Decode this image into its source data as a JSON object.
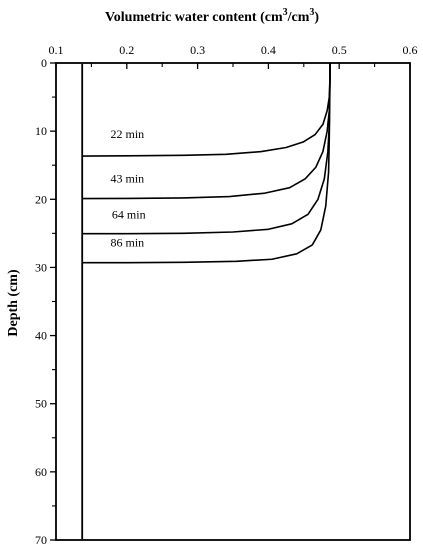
{
  "chart_data": {
    "type": "line",
    "title": "",
    "xlabel": "Volumetric water content (cm3/cm3)",
    "xlabel_parts": {
      "base": "Volumetric water content (cm",
      "sup1": "3",
      "mid": "/cm",
      "sup2": "3",
      "end": ")"
    },
    "ylabel": "Depth (cm)",
    "x_axis_position": "top",
    "y_axis_inverted": true,
    "xlim": [
      0.1,
      0.6
    ],
    "ylim": [
      0,
      70
    ],
    "x_ticks": [
      0.1,
      0.2,
      0.3,
      0.4,
      0.5,
      0.6
    ],
    "x_tick_labels": [
      "0.1",
      "0.2",
      "0.3",
      "0.4",
      "0.5",
      "0.6"
    ],
    "x_minor_step": 0.05,
    "y_ticks": [
      0,
      10,
      20,
      30,
      40,
      50,
      60,
      70
    ],
    "y_tick_labels": [
      "0",
      "10",
      "20",
      "30",
      "40",
      "50",
      "60",
      "70"
    ],
    "y_minor_step": 5,
    "grid": false,
    "legend": "none",
    "line_color": "#000000",
    "initial_water_content": 0.137,
    "saturated_water_content": 0.487,
    "series": [
      {
        "label": "22 min",
        "label_anchor": [
          0.177,
          11
        ],
        "points": [
          [
            0.487,
            2
          ],
          [
            0.486,
            5
          ],
          [
            0.483,
            7
          ],
          [
            0.477,
            9
          ],
          [
            0.466,
            10.5
          ],
          [
            0.449,
            11.6
          ],
          [
            0.425,
            12.4
          ],
          [
            0.39,
            13.0
          ],
          [
            0.34,
            13.4
          ],
          [
            0.28,
            13.55
          ],
          [
            0.2,
            13.62
          ],
          [
            0.137,
            13.65
          ]
        ]
      },
      {
        "label": "43 min",
        "label_anchor": [
          0.177,
          17.5
        ],
        "points": [
          [
            0.487,
            2
          ],
          [
            0.486,
            7
          ],
          [
            0.483,
            10
          ],
          [
            0.477,
            13
          ],
          [
            0.467,
            15.3
          ],
          [
            0.452,
            17.0
          ],
          [
            0.43,
            18.3
          ],
          [
            0.395,
            19.1
          ],
          [
            0.345,
            19.6
          ],
          [
            0.28,
            19.8
          ],
          [
            0.2,
            19.88
          ],
          [
            0.137,
            19.9
          ]
        ]
      },
      {
        "label": "64 min",
        "label_anchor": [
          0.179,
          22.8
        ],
        "points": [
          [
            0.487,
            2
          ],
          [
            0.486,
            9
          ],
          [
            0.484,
            13
          ],
          [
            0.479,
            17
          ],
          [
            0.47,
            20.0
          ],
          [
            0.456,
            22.2
          ],
          [
            0.433,
            23.6
          ],
          [
            0.4,
            24.4
          ],
          [
            0.35,
            24.8
          ],
          [
            0.28,
            25.0
          ],
          [
            0.2,
            25.05
          ],
          [
            0.137,
            25.05
          ]
        ]
      },
      {
        "label": "86 min",
        "label_anchor": [
          0.177,
          26.9
        ],
        "points": [
          [
            0.487,
            2
          ],
          [
            0.486,
            11
          ],
          [
            0.485,
            16
          ],
          [
            0.481,
            21
          ],
          [
            0.474,
            24.5
          ],
          [
            0.462,
            26.7
          ],
          [
            0.44,
            28.0
          ],
          [
            0.405,
            28.8
          ],
          [
            0.355,
            29.1
          ],
          [
            0.28,
            29.25
          ],
          [
            0.2,
            29.3
          ],
          [
            0.137,
            29.3
          ]
        ]
      }
    ]
  }
}
